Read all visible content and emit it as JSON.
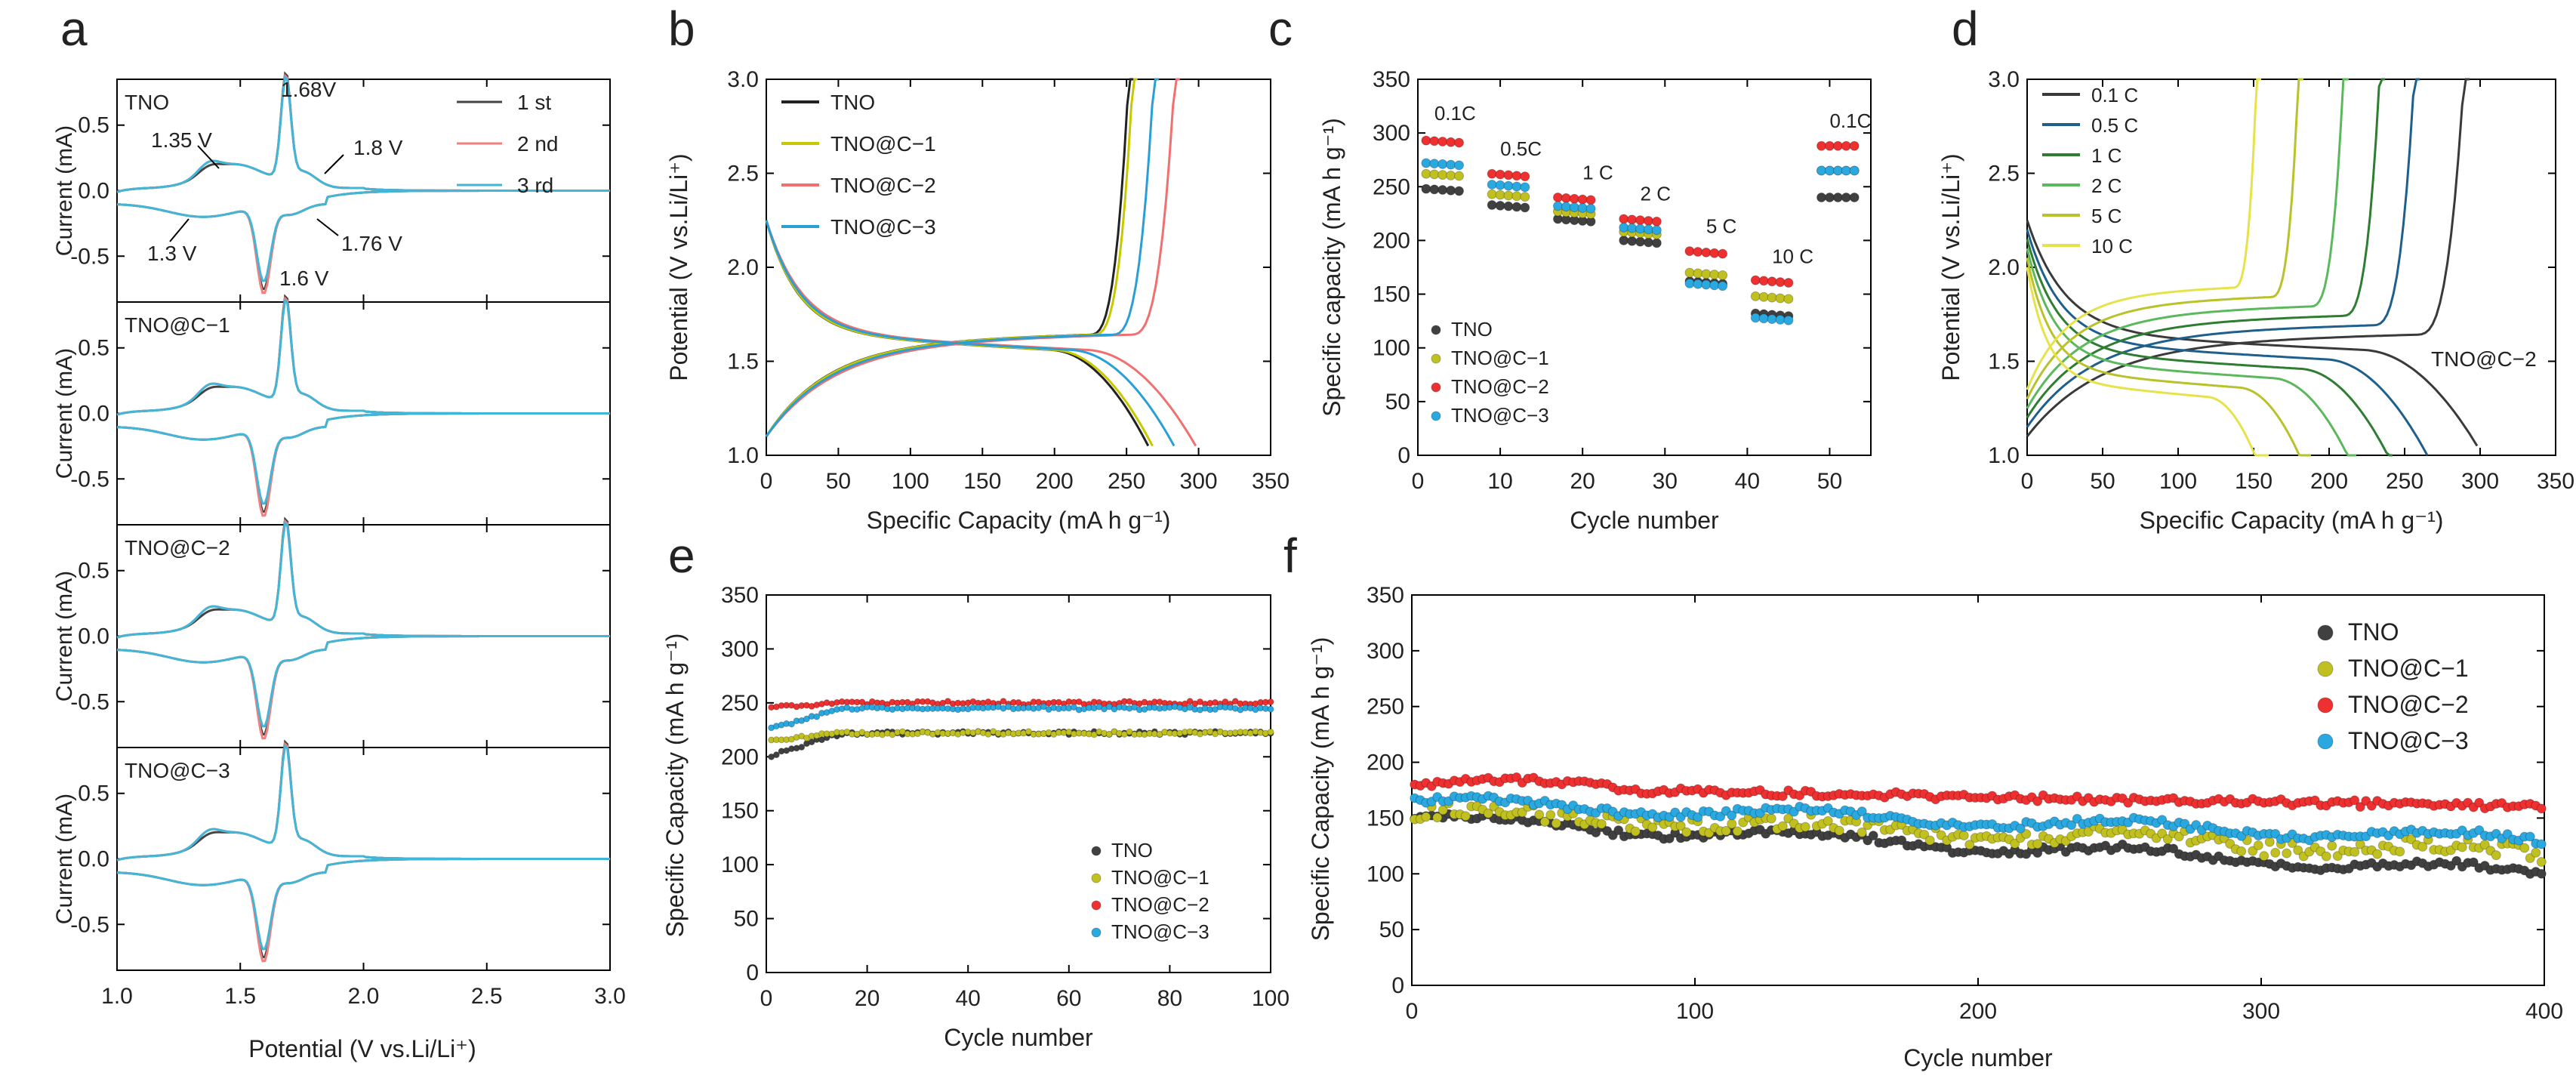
{
  "panel_letters": {
    "a": "a",
    "b": "b",
    "c": "c",
    "d": "d",
    "e": "e",
    "f": "f"
  },
  "colors": {
    "cycle1": "#444444",
    "cycle2": "#f08080",
    "cycle3": "#41b6d6",
    "TNO_line": "#222222",
    "C1_line": "#c8c800",
    "C2_line": "#f07070",
    "C3_line": "#2a9fd6",
    "TNO_dot": "#404040",
    "C1_dot": "#c0c020",
    "C2_dot": "#ee3030",
    "C3_dot": "#2aa8e0",
    "rate": [
      "#3a3a3a",
      "#1f5f8b",
      "#2e7d32",
      "#5cb85c",
      "#b8c22a",
      "#e6e34a"
    ]
  },
  "chart_data": [
    {
      "id": "a",
      "type": "line",
      "title": "",
      "xlabel": "Potential (V vs.Li/Li⁺)",
      "ylabel": "Current (mA)",
      "xlim": [
        1.0,
        3.0
      ],
      "ylim": [
        -0.8,
        0.85
      ],
      "xticks": [
        "1.0",
        "1.5",
        "2.0",
        "2.5",
        "3.0"
      ],
      "yticks": [
        "-0.5",
        "0.0",
        "0.5"
      ],
      "legend": [
        "1 st",
        "2 nd",
        "3 rd"
      ],
      "subplots": [
        {
          "label": "TNO",
          "annotations": [
            "1.68V",
            "1.35 V",
            "1.8 V",
            "1.3 V",
            "1.6 V",
            "1.76 V"
          ]
        },
        {
          "label": "TNO@C−1",
          "annotations": []
        },
        {
          "label": "TNO@C−2",
          "annotations": []
        },
        {
          "label": "TNO@C−3",
          "annotations": []
        }
      ],
      "peaks": {
        "anodic_V": 1.68,
        "anodic_I": 0.8,
        "cathodic_V": 1.6,
        "cathodic_I": -0.75,
        "shoulder_anodic_V": 1.35,
        "shoulder_cathodic_V": 1.3
      }
    },
    {
      "id": "b",
      "type": "line",
      "xlabel": "Specific Capacity (mA h g⁻¹)",
      "ylabel": "Potential (V vs.Li/Li⁺)",
      "xlim": [
        0,
        350
      ],
      "ylim": [
        1.0,
        3.0
      ],
      "xticks": [
        "0",
        "50",
        "100",
        "150",
        "200",
        "250",
        "300",
        "350"
      ],
      "yticks": [
        "1.0",
        "1.5",
        "2.0",
        "2.5",
        "3.0"
      ],
      "series": [
        {
          "name": "TNO",
          "capacity": 265
        },
        {
          "name": "TNO@C−1",
          "capacity": 268
        },
        {
          "name": "TNO@C−2",
          "capacity": 298
        },
        {
          "name": "TNO@C−3",
          "capacity": 283
        }
      ]
    },
    {
      "id": "c",
      "type": "scatter",
      "xlabel": "Cycle number",
      "ylabel": "Specific capacity (mA h g⁻¹)",
      "xlim": [
        0,
        55
      ],
      "ylim": [
        0,
        350
      ],
      "xticks": [
        "0",
        "10",
        "20",
        "30",
        "40",
        "50"
      ],
      "yticks": [
        "0",
        "50",
        "100",
        "150",
        "200",
        "250",
        "300",
        "350"
      ],
      "rate_labels": [
        "0.1C",
        "0.5C",
        "1 C",
        "2 C",
        "5 C",
        "10 C",
        "0.1C"
      ],
      "series": [
        {
          "name": "TNO",
          "values": [
            248,
            233,
            220,
            200,
            162,
            132,
            240
          ]
        },
        {
          "name": "TNO@C−1",
          "values": [
            262,
            243,
            227,
            208,
            170,
            148,
            265
          ]
        },
        {
          "name": "TNO@C−2",
          "values": [
            293,
            262,
            240,
            220,
            190,
            163,
            288
          ]
        },
        {
          "name": "TNO@C−3",
          "values": [
            272,
            252,
            232,
            212,
            160,
            128,
            265
          ]
        }
      ]
    },
    {
      "id": "d",
      "type": "line",
      "xlabel": "Specific Capacity (mA h g⁻¹)",
      "ylabel": "Potential (V vs.Li/Li⁺)",
      "xlim": [
        0,
        350
      ],
      "ylim": [
        1.0,
        3.0
      ],
      "xticks": [
        "0",
        "50",
        "100",
        "150",
        "200",
        "250",
        "300",
        "350"
      ],
      "yticks": [
        "1.0",
        "1.5",
        "2.0",
        "2.5",
        "3.0"
      ],
      "sample_label": "TNO@C−2",
      "series": [
        {
          "name": "0.1 C",
          "capacity": 298
        },
        {
          "name": "0.5 C",
          "capacity": 265
        },
        {
          "name": "1 C",
          "capacity": 242
        },
        {
          "name": "2 C",
          "capacity": 218
        },
        {
          "name": "5 C",
          "capacity": 188
        },
        {
          "name": "10 C",
          "capacity": 160
        }
      ]
    },
    {
      "id": "e",
      "type": "scatter",
      "xlabel": "Cycle number",
      "ylabel": "Specific Capacity (mA h g⁻¹)",
      "xlim": [
        0,
        100
      ],
      "ylim": [
        0,
        350
      ],
      "xticks": [
        "0",
        "20",
        "40",
        "60",
        "80",
        "100"
      ],
      "yticks": [
        "0",
        "50",
        "100",
        "150",
        "200",
        "250",
        "300",
        "350"
      ],
      "series": [
        {
          "name": "TNO",
          "start": 200,
          "end": 222
        },
        {
          "name": "TNO@C−1",
          "start": 215,
          "end": 222
        },
        {
          "name": "TNO@C−2",
          "start": 245,
          "end": 250
        },
        {
          "name": "TNO@C−3",
          "start": 225,
          "end": 245
        }
      ]
    },
    {
      "id": "f",
      "type": "scatter",
      "xlabel": "Cycle number",
      "ylabel": "Specific Capacity (mA h g⁻¹)",
      "xlim": [
        0,
        400
      ],
      "ylim": [
        0,
        350
      ],
      "xticks": [
        "0",
        "100",
        "200",
        "300",
        "400"
      ],
      "yticks": [
        "0",
        "50",
        "100",
        "150",
        "200",
        "250",
        "300",
        "350"
      ],
      "series": [
        {
          "name": "TNO",
          "start": 150,
          "end": 100
        },
        {
          "name": "TNO@C−1",
          "start": 155,
          "end": 118
        },
        {
          "name": "TNO@C−2",
          "start": 178,
          "end": 160
        },
        {
          "name": "TNO@C−3",
          "start": 165,
          "end": 130
        }
      ]
    }
  ]
}
